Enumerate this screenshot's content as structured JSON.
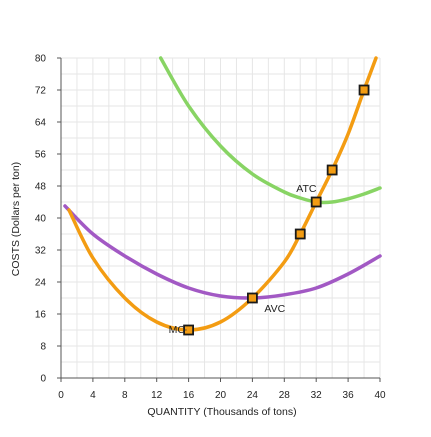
{
  "chart_data": {
    "type": "line",
    "xlabel": "QUANTITY (Thousands of tons)",
    "ylabel": "COSTS (Dollars per ton)",
    "xlim": [
      0,
      40
    ],
    "ylim": [
      0,
      80
    ],
    "x_ticks": [
      0,
      4,
      8,
      12,
      16,
      20,
      24,
      28,
      32,
      36,
      40
    ],
    "y_ticks": [
      0,
      8,
      16,
      24,
      32,
      40,
      48,
      56,
      64,
      72,
      80
    ],
    "grid": true,
    "colors": {
      "MC": "#f39c12",
      "AVC": "#a259c4",
      "ATC": "#88d464",
      "marker_fill": "#f39c12",
      "marker_edge": "#1a1a1a",
      "grid": "#e6e6e6"
    },
    "series": [
      {
        "name": "MC",
        "x": [
          1,
          4,
          8,
          12,
          16,
          20,
          24,
          28,
          30,
          32,
          34,
          36,
          38,
          39.5
        ],
        "y": [
          42,
          30,
          20,
          14,
          12,
          14,
          20,
          29,
          36,
          44,
          52,
          61,
          72,
          80
        ]
      },
      {
        "name": "AVC",
        "x": [
          0.5,
          4,
          8,
          12,
          16,
          20,
          24,
          28,
          32,
          36,
          40
        ],
        "y": [
          43,
          36,
          30.5,
          26,
          22.5,
          20.5,
          20,
          20.8,
          22.5,
          26,
          30.5
        ]
      },
      {
        "name": "ATC",
        "x": [
          12.5,
          16,
          20,
          24,
          28,
          30,
          32,
          34,
          36,
          38,
          40
        ],
        "y": [
          80,
          68,
          58,
          51,
          46.5,
          45,
          44,
          44,
          44.8,
          46,
          47.5
        ]
      }
    ],
    "markers": [
      {
        "x": 16,
        "y": 12
      },
      {
        "x": 24,
        "y": 20
      },
      {
        "x": 30,
        "y": 36
      },
      {
        "x": 32,
        "y": 44
      },
      {
        "x": 34,
        "y": 52
      },
      {
        "x": 38,
        "y": 72
      }
    ],
    "annotations": [
      {
        "text": "MC",
        "x": 13.5,
        "y": 12
      },
      {
        "text": "AVC",
        "x": 25.5,
        "y": 16.5
      },
      {
        "text": "ATC",
        "x": 29.5,
        "y": 46.5
      }
    ]
  }
}
